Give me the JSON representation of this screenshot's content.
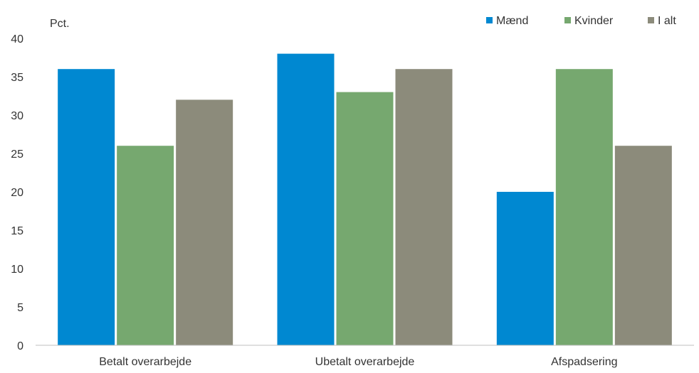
{
  "chart_data": {
    "type": "bar",
    "ylabel": "Pct.",
    "xlabel": "",
    "categories": [
      "Betalt overarbejde",
      "Ubetalt overarbejde",
      "Afspadsering"
    ],
    "series": [
      {
        "name": "Mænd",
        "values": [
          36,
          38,
          20
        ],
        "color": "#0088d1"
      },
      {
        "name": "Kvinder",
        "values": [
          26,
          33,
          36
        ],
        "color": "#76a86f"
      },
      {
        "name": "I alt",
        "values": [
          32,
          36,
          26
        ],
        "color": "#8c8b7b"
      }
    ],
    "ylim": [
      0,
      40
    ],
    "yticks": [
      0,
      5,
      10,
      15,
      20,
      25,
      30,
      35,
      40
    ],
    "legend_position": "top-right",
    "grid": false
  }
}
